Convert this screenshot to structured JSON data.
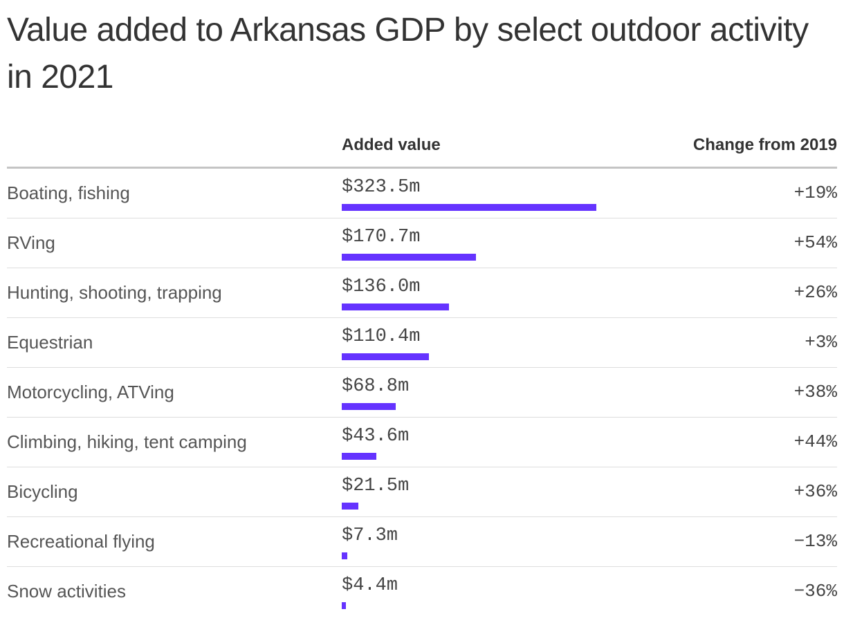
{
  "title": "Value added to Arkansas GDP by select outdoor activity in 2021",
  "columns": {
    "value": "Added value",
    "change": "Change from 2019"
  },
  "colors": {
    "bar": "#6533ff",
    "text": "#333333",
    "divider": "#dddddd",
    "header_rule": "#c4c4c4"
  },
  "chart_data": {
    "type": "bar",
    "orientation": "horizontal",
    "unit": "million USD",
    "categories": [
      "Boating, fishing",
      "RVing",
      "Hunting, shooting, trapping",
      "Equestrian",
      "Motorcycling, ATVing",
      "Climbing, hiking, tent camping",
      "Bicycling",
      "Recreational flying",
      "Snow activities"
    ],
    "values": [
      323.5,
      170.7,
      136.0,
      110.4,
      68.8,
      43.6,
      21.5,
      7.3,
      4.4
    ],
    "value_labels": [
      "$323.5m",
      "$170.7m",
      "$136.0m",
      "$110.4m",
      "$68.8m",
      "$43.6m",
      "$21.5m",
      "$7.3m",
      "$4.4m"
    ],
    "change_labels": [
      "+19%",
      "+54%",
      "+26%",
      "+3%",
      "+38%",
      "+44%",
      "+36%",
      "−13%",
      "−36%"
    ],
    "xlim": [
      0,
      323.5
    ],
    "grid": false,
    "legend": "none"
  }
}
